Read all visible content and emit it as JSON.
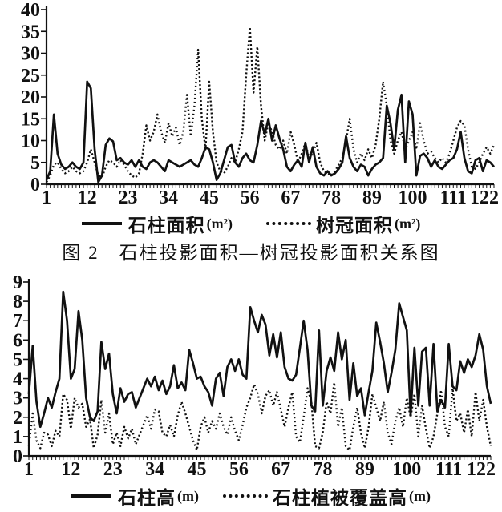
{
  "figure": {
    "caption": "图 2　石柱投影面积—树冠投影面积关系图"
  },
  "legend1": {
    "series1": "石柱面积",
    "series1_unit": "(m²)",
    "series2": "树冠面积",
    "series2_unit": "(m²)"
  },
  "legend2": {
    "series1": "石柱高",
    "series1_unit": "(m)",
    "series2": "石柱植被覆盖高",
    "series2_unit": "(m)"
  },
  "chart_data": [
    {
      "type": "line",
      "title": "图2 石柱投影面积—树冠投影面积关系图",
      "xlabel": "",
      "ylabel": "",
      "x_start": 1,
      "x_end": 122,
      "xticks": [
        1,
        12,
        23,
        34,
        45,
        56,
        67,
        78,
        89,
        100,
        111,
        122
      ],
      "ylim": [
        0,
        40
      ],
      "yticks": [
        0,
        5,
        10,
        15,
        20,
        25,
        30,
        35,
        40
      ],
      "grid": false,
      "legend_position": "bottom",
      "line_color": "#111111",
      "series": [
        {
          "name": "石柱面积(m²)",
          "style": "solid",
          "values": [
            1,
            3,
            16,
            7,
            4.5,
            3.5,
            4,
            5,
            4,
            3.5,
            5,
            23.5,
            22,
            8,
            0.5,
            2,
            9,
            10.5,
            9.8,
            5.5,
            6,
            5,
            4.5,
            5.5,
            4,
            5.5,
            4,
            3.5,
            5,
            5.5,
            5,
            4,
            3,
            5.5,
            5,
            4.5,
            4,
            4.5,
            5,
            5.5,
            4.5,
            4,
            6,
            8.5,
            8,
            5,
            1,
            2.5,
            5.5,
            8.5,
            9,
            5,
            4,
            6,
            7,
            5.5,
            5,
            9,
            14.5,
            11.5,
            15,
            10,
            13.5,
            10.5,
            8,
            4,
            3,
            4.5,
            5.5,
            4,
            9.5,
            5,
            8.5,
            4,
            2.5,
            2,
            3,
            2,
            2.5,
            3.5,
            5,
            11,
            6,
            4,
            3,
            4.5,
            4,
            2,
            3.5,
            4.5,
            5,
            6,
            18,
            14,
            8,
            17,
            20.5,
            5,
            19,
            16,
            2,
            6.5,
            7,
            6,
            4,
            5.5,
            4,
            3.5,
            4.5,
            5.5,
            6,
            8,
            12,
            6,
            3,
            2.5,
            5.5,
            6,
            3,
            5.5,
            5,
            4
          ]
        },
        {
          "name": "树冠面积(m²)",
          "style": "dotted",
          "values": [
            0.5,
            2,
            4.5,
            5,
            3.5,
            2.5,
            3,
            4,
            3,
            2.5,
            3,
            5,
            8,
            5,
            2,
            1.5,
            4,
            5.5,
            5,
            4,
            5.5,
            4.5,
            3,
            2,
            1.5,
            2.5,
            7,
            13.5,
            10,
            12,
            16,
            12,
            9.5,
            14,
            11,
            13,
            9,
            12,
            20.5,
            11,
            18,
            30.8,
            15,
            8,
            23.5,
            12,
            5,
            3,
            2.5,
            4,
            6,
            5,
            8,
            12,
            25,
            36,
            21,
            31.5,
            18,
            10,
            14,
            12,
            9,
            8,
            10,
            7,
            12,
            9,
            5,
            7,
            9.5,
            6,
            7,
            9.5,
            5,
            3,
            2.5,
            2,
            3,
            4.5,
            6,
            10,
            15,
            8,
            5,
            7,
            5.5,
            8,
            6,
            9,
            15,
            23.5,
            18,
            10,
            7,
            10,
            12,
            8,
            10,
            12,
            8,
            14,
            10,
            7,
            7.5,
            6,
            5,
            6,
            5,
            7,
            10,
            13,
            14.5,
            13.5,
            8,
            4,
            3.5,
            5,
            7,
            8.5,
            7,
            9
          ]
        }
      ]
    },
    {
      "type": "line",
      "xlabel": "",
      "ylabel": "",
      "x_start": 1,
      "x_end": 122,
      "xticks": [
        1,
        12,
        23,
        34,
        45,
        56,
        67,
        78,
        89,
        100,
        111,
        122
      ],
      "ylim": [
        0,
        9
      ],
      "yticks": [
        0,
        1,
        2,
        3,
        4,
        5,
        6,
        7,
        8,
        9
      ],
      "grid": false,
      "legend_position": "bottom",
      "line_color": "#111111",
      "series": [
        {
          "name": "石柱高(m)",
          "style": "solid",
          "values": [
            3.2,
            5.7,
            2.8,
            1.5,
            2.2,
            3,
            2.5,
            3.3,
            4,
            8.5,
            7,
            4,
            4.5,
            7.5,
            6,
            3,
            2,
            1.8,
            2.3,
            5.9,
            4.5,
            5.3,
            3.2,
            2.2,
            3.5,
            2.8,
            3.2,
            3.3,
            2.5,
            3,
            3.5,
            4,
            3.6,
            4.1,
            3.4,
            3.9,
            3.2,
            3.6,
            4.7,
            3.5,
            3.8,
            3.4,
            5.5,
            4.8,
            4,
            4.1,
            3.6,
            3.3,
            2.6,
            4,
            4.3,
            3.1,
            4.6,
            5,
            4.4,
            5,
            4.2,
            4,
            7.7,
            7,
            6.4,
            7.3,
            6.8,
            5.2,
            6.3,
            5.1,
            6.4,
            4.6,
            4,
            3.9,
            4.2,
            5.6,
            7,
            5.5,
            2.6,
            2.3,
            6.5,
            2.6,
            4.4,
            5.1,
            4.4,
            6.4,
            5,
            6,
            2.9,
            4.8,
            3.1,
            3.5,
            2.1,
            3.3,
            4.4,
            6.9,
            5.9,
            4.8,
            3.3,
            4.3,
            5.5,
            7.9,
            7.2,
            6.5,
            2.1,
            5.6,
            2.6,
            5.4,
            5.6,
            2.6,
            5.8,
            2.3,
            2.9,
            2.5,
            5.8,
            3.6,
            3.4,
            4.9,
            4.3,
            5,
            4.6,
            5.2,
            6.3,
            5.5,
            3.6,
            2.7
          ]
        },
        {
          "name": "石柱植被覆盖高(m)",
          "style": "dotted",
          "values": [
            0.5,
            2.2,
            0.8,
            0.4,
            1.2,
            1.1,
            0.5,
            1.3,
            1,
            3.2,
            2.9,
            1.4,
            3,
            2.5,
            2.7,
            1.5,
            1.9,
            0.4,
            1.1,
            2.9,
            1.2,
            2.2,
            0.6,
            1.2,
            0.5,
            1.5,
            0.9,
            1.4,
            0.6,
            1.1,
            1.6,
            2.1,
            1.4,
            2.4,
            2.3,
            1.2,
            1,
            1.6,
            1,
            2.1,
            2.8,
            2.2,
            1.5,
            0.8,
            0.3,
            1.5,
            2,
            1.2,
            1.8,
            1.4,
            2.2,
            1.5,
            1.1,
            2,
            1.3,
            0.8,
            1.6,
            2.5,
            3,
            3.7,
            3.2,
            2.2,
            3.1,
            3.4,
            2.6,
            3.3,
            2.4,
            1.5,
            2.5,
            3.3,
            1,
            0.7,
            2,
            3.5,
            2.8,
            0.5,
            0.4,
            1.2,
            2.8,
            2.2,
            3.8,
            1.5,
            2.5,
            0.5,
            0.3,
            1.5,
            2.5,
            1.2,
            0.4,
            1.5,
            3.2,
            2.5,
            1.8,
            2.8,
            1.2,
            0.6,
            1.8,
            2.5,
            1.5,
            3,
            2,
            3.2,
            1,
            2.6,
            1.4,
            0.4,
            1,
            2.2,
            3.4,
            1.5,
            1,
            3.5,
            1.8,
            2.2,
            1.2,
            2.4,
            1,
            3.3,
            1.8,
            2.9,
            1.5,
            0.5
          ]
        }
      ]
    }
  ]
}
